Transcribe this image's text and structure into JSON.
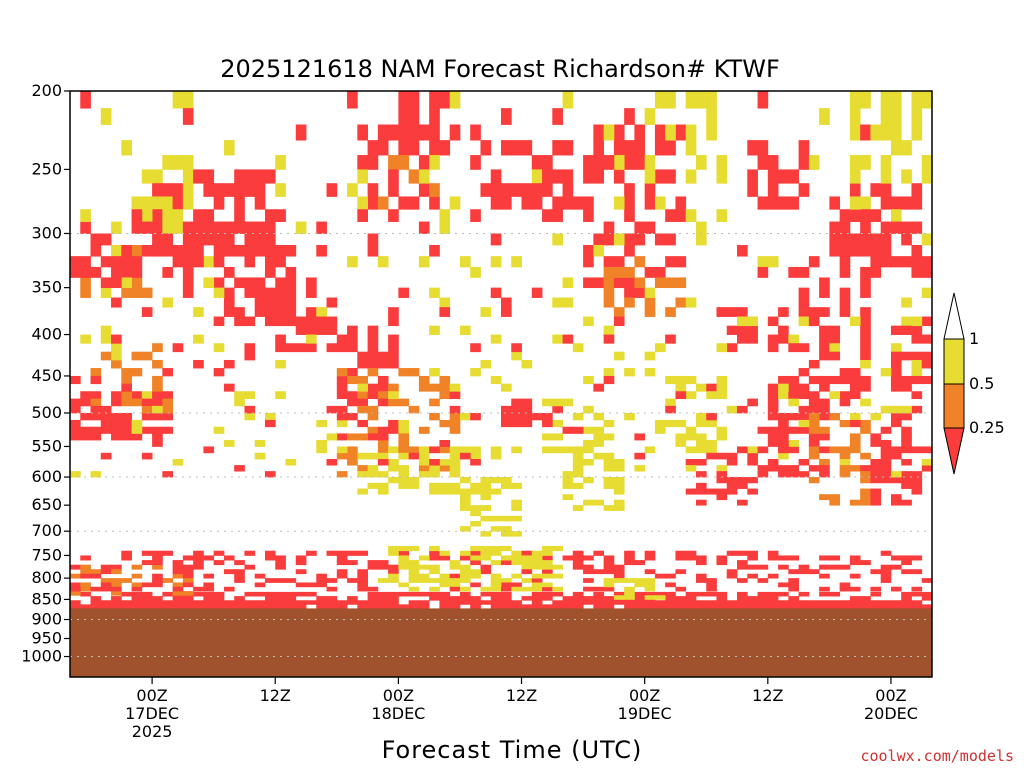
{
  "chart_data": {
    "type": "heatmap",
    "title": "2025121618 NAM Forecast Richardson# KTWF",
    "xlabel": "Forecast Time (UTC)",
    "ylabel": "",
    "credit": "coolwx.com/models",
    "y_axis": {
      "scale": "log-pressure",
      "range": [
        1060,
        200
      ],
      "ticks": [
        200,
        250,
        300,
        350,
        400,
        450,
        500,
        550,
        600,
        650,
        700,
        750,
        800,
        850,
        900,
        950,
        1000
      ],
      "gridlines": [
        300,
        500,
        600,
        700,
        900,
        1000
      ]
    },
    "x_axis": {
      "units": "forecast hours",
      "range": [
        -2,
        82
      ],
      "ticks": [
        {
          "hour": 6,
          "lines": [
            "00Z",
            "17DEC",
            "2025"
          ]
        },
        {
          "hour": 18,
          "lines": [
            "12Z"
          ]
        },
        {
          "hour": 30,
          "lines": [
            "00Z",
            "18DEC"
          ]
        },
        {
          "hour": 42,
          "lines": [
            "12Z"
          ]
        },
        {
          "hour": 54,
          "lines": [
            "00Z",
            "19DEC"
          ]
        },
        {
          "hour": 66,
          "lines": [
            "12Z"
          ]
        },
        {
          "hour": 78,
          "lines": [
            "00Z",
            "20DEC"
          ]
        }
      ]
    },
    "legend": {
      "placement": "right",
      "labels": [
        "1",
        "0.5",
        "0.25"
      ],
      "bins": [
        {
          "label": "> 1",
          "color": "#ffffff"
        },
        {
          "label": "0.5 - 1",
          "color": "#e6dc32"
        },
        {
          "label": "0.25 - 0.5",
          "color": "#f08228"
        },
        {
          "label": "< 0.25",
          "color": "#fa3c3c"
        }
      ]
    },
    "surface_pressure_hPa": 872,
    "ground_color": "#a0522d",
    "cell_grid": {
      "hour_step": 1,
      "pressure_step_hPa": 10
    },
    "regions": [
      {
        "hours": [
          -2,
          82
        ],
        "p": [
          872,
          852
        ],
        "cat": 3,
        "density": 0.92
      },
      {
        "hours": [
          -2,
          82
        ],
        "p": [
          852,
          832
        ],
        "cat": 3,
        "density": 0.6
      },
      {
        "hours": [
          -2,
          10
        ],
        "p": [
          840,
          770
        ],
        "cat": 2,
        "density": 0.35
      },
      {
        "hours": [
          -2,
          82
        ],
        "p": [
          830,
          740
        ],
        "cat": 3,
        "density": 0.35
      },
      {
        "hours": [
          28,
          46
        ],
        "p": [
          830,
          730
        ],
        "cat": 1,
        "density": 0.5
      },
      {
        "hours": [
          50,
          56
        ],
        "p": [
          850,
          800
        ],
        "cat": 1,
        "density": 0.5
      },
      {
        "hours": [
          -2,
          8
        ],
        "p": [
          470,
          540
        ],
        "cat": 3,
        "density": 0.65
      },
      {
        "hours": [
          0,
          8
        ],
        "p": [
          410,
          500
        ],
        "cat": 2,
        "density": 0.3
      },
      {
        "hours": [
          6,
          18
        ],
        "p": [
          250,
          320
        ],
        "cat": 3,
        "density": 0.7
      },
      {
        "hours": [
          4,
          10
        ],
        "p": [
          240,
          290
        ],
        "cat": 1,
        "density": 0.45
      },
      {
        "hours": [
          -2,
          6
        ],
        "p": [
          310,
          360
        ],
        "cat": 2,
        "density": 0.45
      },
      {
        "hours": [
          -2,
          12
        ],
        "p": [
          290,
          340
        ],
        "cat": 3,
        "density": 0.45
      },
      {
        "hours": [
          12,
          20
        ],
        "p": [
          290,
          390
        ],
        "cat": 3,
        "density": 0.55
      },
      {
        "hours": [
          18,
          24
        ],
        "p": [
          360,
          420
        ],
        "cat": 3,
        "density": 0.55
      },
      {
        "hours": [
          24,
          30
        ],
        "p": [
          380,
          540
        ],
        "cat": 3,
        "density": 0.55
      },
      {
        "hours": [
          24,
          36
        ],
        "p": [
          440,
          600
        ],
        "cat": 2,
        "density": 0.35
      },
      {
        "hours": [
          26,
          40
        ],
        "p": [
          550,
          630
        ],
        "cat": 1,
        "density": 0.4
      },
      {
        "hours": [
          26,
          34
        ],
        "p": [
          220,
          280
        ],
        "cat": 3,
        "density": 0.6
      },
      {
        "hours": [
          28,
          34
        ],
        "p": [
          230,
          280
        ],
        "cat": 2,
        "density": 0.35
      },
      {
        "hours": [
          30,
          36
        ],
        "p": [
          200,
          240
        ],
        "cat": 3,
        "density": 0.5
      },
      {
        "hours": [
          36,
          42
        ],
        "p": [
          600,
          720
        ],
        "cat": 1,
        "density": 0.45
      },
      {
        "hours": [
          38,
          48
        ],
        "p": [
          230,
          280
        ],
        "cat": 3,
        "density": 0.55
      },
      {
        "hours": [
          40,
          46
        ],
        "p": [
          480,
          540
        ],
        "cat": 3,
        "density": 0.55
      },
      {
        "hours": [
          44,
          50
        ],
        "p": [
          480,
          560
        ],
        "cat": 1,
        "density": 0.5
      },
      {
        "hours": [
          46,
          52
        ],
        "p": [
          560,
          660
        ],
        "cat": 1,
        "density": 0.5
      },
      {
        "hours": [
          48,
          56
        ],
        "p": [
          300,
          360
        ],
        "cat": 3,
        "density": 0.55
      },
      {
        "hours": [
          48,
          58
        ],
        "p": [
          220,
          300
        ],
        "cat": 3,
        "density": 0.4
      },
      {
        "hours": [
          50,
          58
        ],
        "p": [
          320,
          380
        ],
        "cat": 2,
        "density": 0.3
      },
      {
        "hours": [
          54,
          62
        ],
        "p": [
          200,
          260
        ],
        "cat": 1,
        "density": 0.45
      },
      {
        "hours": [
          56,
          62
        ],
        "p": [
          450,
          560
        ],
        "cat": 1,
        "density": 0.4
      },
      {
        "hours": [
          58,
          66
        ],
        "p": [
          560,
          650
        ],
        "cat": 3,
        "density": 0.45
      },
      {
        "hours": [
          62,
          68
        ],
        "p": [
          370,
          420
        ],
        "cat": 3,
        "density": 0.5
      },
      {
        "hours": [
          64,
          70
        ],
        "p": [
          230,
          280
        ],
        "cat": 3,
        "density": 0.45
      },
      {
        "hours": [
          66,
          72
        ],
        "p": [
          450,
          600
        ],
        "cat": 3,
        "density": 0.45
      },
      {
        "hours": [
          68,
          76
        ],
        "p": [
          330,
          480
        ],
        "cat": 3,
        "density": 0.4
      },
      {
        "hours": [
          70,
          76
        ],
        "p": [
          500,
          650
        ],
        "cat": 2,
        "density": 0.35
      },
      {
        "hours": [
          72,
          82
        ],
        "p": [
          260,
          340
        ],
        "cat": 3,
        "density": 0.6
      },
      {
        "hours": [
          74,
          82
        ],
        "p": [
          200,
          260
        ],
        "cat": 1,
        "density": 0.45
      },
      {
        "hours": [
          78,
          82
        ],
        "p": [
          380,
          500
        ],
        "cat": 3,
        "density": 0.55
      },
      {
        "hours": [
          76,
          82
        ],
        "p": [
          500,
          650
        ],
        "cat": 3,
        "density": 0.4
      },
      {
        "hours": [
          -2,
          82
        ],
        "p": [
          200,
          600
        ],
        "cat": 1,
        "density": 0.06
      },
      {
        "hours": [
          -2,
          82
        ],
        "p": [
          200,
          600
        ],
        "cat": 3,
        "density": 0.05
      }
    ]
  }
}
